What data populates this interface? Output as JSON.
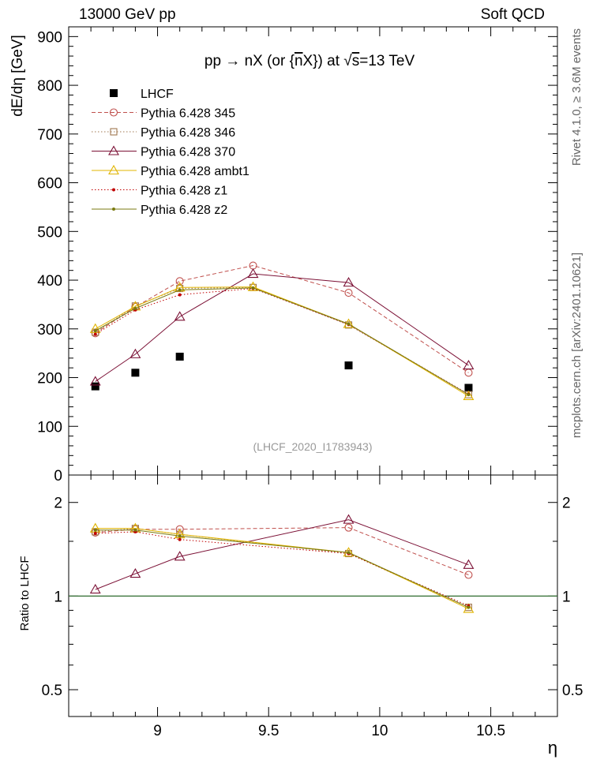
{
  "header": {
    "left": "13000 GeV pp",
    "right": "Soft QCD"
  },
  "side_text": {
    "rivet": "Rivet 4.1.0, ≥ 3.6M events",
    "mcplots": "mcplots.cern.ch [arXiv:2401.10621]"
  },
  "colors": {
    "LHCF": "#000000",
    "p345": "#c0504d",
    "p346": "#a07850",
    "p370": "#7b1035",
    "ambt1": "#e0b400",
    "z1": "#c00000",
    "z2": "#7a7a10",
    "ref_line": "#2e6b2e"
  },
  "chart_data": [
    {
      "type": "scatter",
      "panel": "main",
      "title_parts": {
        "pp": "pp",
        "arrow": "→",
        "nx": "nX (or {",
        "nbar": "n",
        "x2": "X}) at",
        "sqrt": "√",
        "s": "s",
        "energy": "=13 TeV"
      },
      "ylabel": "dE/dη [GeV]",
      "ylim": [
        0,
        920
      ],
      "yticks": [
        0,
        100,
        200,
        300,
        400,
        500,
        600,
        700,
        800,
        900
      ],
      "xlim": [
        8.6,
        10.8
      ],
      "annotation": "(LHCF_2020_I1783943)",
      "x": [
        8.72,
        8.9,
        9.1,
        9.43,
        9.86,
        10.4
      ],
      "series": [
        {
          "key": "LHCF",
          "name": "LHCF",
          "marker": "square-filled",
          "dash": "none",
          "values": [
            182,
            210,
            243,
            null,
            225,
            179
          ]
        },
        {
          "key": "p345",
          "name": "Pythia 6.428 345",
          "marker": "circle-open",
          "dash": "dashed",
          "values": [
            291,
            345,
            398,
            430,
            374,
            210
          ]
        },
        {
          "key": "p346",
          "name": "Pythia 6.428 346",
          "marker": "square-open",
          "dash": "dotted",
          "values": [
            293,
            347,
            383,
            385,
            308,
            165
          ]
        },
        {
          "key": "p370",
          "name": "Pythia 6.428 370",
          "marker": "triangle-open",
          "dash": "solid",
          "values": [
            192,
            248,
            325,
            413,
            395,
            225
          ]
        },
        {
          "key": "ambt1",
          "name": "Pythia 6.428 ambt1",
          "marker": "triangle-open",
          "dash": "solid",
          "values": [
            300,
            346,
            385,
            386,
            310,
            162
          ]
        },
        {
          "key": "z1",
          "name": "Pythia 6.428 z1",
          "marker": "dot",
          "dash": "dotted",
          "values": [
            289,
            339,
            370,
            383,
            309,
            166
          ]
        },
        {
          "key": "z2",
          "name": "Pythia 6.428 z2",
          "marker": "dot",
          "dash": "solid",
          "values": [
            296,
            342,
            380,
            384,
            310,
            165
          ]
        }
      ]
    },
    {
      "type": "line",
      "panel": "ratio",
      "ylabel": "Ratio to LHCF",
      "xlabel": "η",
      "scale": "log",
      "ylim": [
        0.41,
        2.45
      ],
      "yticks": [
        0.5,
        1,
        2
      ],
      "ytick_labels": [
        "0.5",
        "1",
        "2"
      ],
      "xticks": [
        9,
        9.5,
        10,
        10.5
      ],
      "xtick_labels": [
        "9",
        "9.5",
        "10",
        "10.5"
      ],
      "x": [
        8.72,
        8.9,
        9.1,
        9.86,
        10.4
      ],
      "series": [
        {
          "key": "p345",
          "values": [
            1.6,
            1.64,
            1.64,
            1.66,
            1.17
          ]
        },
        {
          "key": "p346",
          "values": [
            1.61,
            1.65,
            1.58,
            1.37,
            0.92
          ]
        },
        {
          "key": "p370",
          "values": [
            1.05,
            1.18,
            1.34,
            1.76,
            1.26
          ]
        },
        {
          "key": "ambt1",
          "values": [
            1.65,
            1.65,
            1.58,
            1.38,
            0.91
          ]
        },
        {
          "key": "z1",
          "values": [
            1.59,
            1.61,
            1.52,
            1.37,
            0.93
          ]
        },
        {
          "key": "z2",
          "values": [
            1.63,
            1.63,
            1.56,
            1.38,
            0.92
          ]
        }
      ]
    }
  ]
}
